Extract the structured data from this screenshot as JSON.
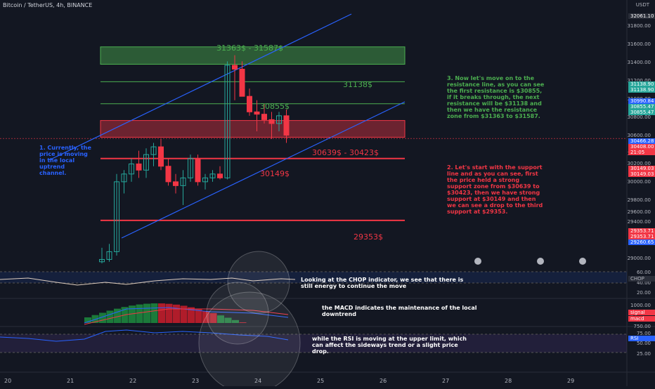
{
  "header": {
    "symbol": "Bitcoin / TetherUS, 4h, BINANCE",
    "currency": "USDT"
  },
  "price_axis": {
    "ticks": [
      "31800.00",
      "31600.00",
      "31400.00",
      "31200.00",
      "31000.00",
      "30800.00",
      "30600.00",
      "30400.00",
      "30200.00",
      "30000.00",
      "29800.00",
      "29600.00",
      "29400.00",
      "29000.00"
    ],
    "tags": [
      {
        "text": "32061.10",
        "color": "#2a2e39"
      },
      {
        "text": "31138.90",
        "color": "#26a69a"
      },
      {
        "text": "31138.90",
        "color": "#26a69a"
      },
      {
        "text": "30990.84",
        "color": "#2962ff"
      },
      {
        "text": "30855.47",
        "color": "#26a69a"
      },
      {
        "text": "30855.47",
        "color": "#26a69a"
      },
      {
        "text": "30466.28",
        "color": "#2962ff"
      },
      {
        "text": "30408.00",
        "color": "#f23645"
      },
      {
        "text": "21:05",
        "color": "#f23645"
      },
      {
        "text": "30149.03",
        "color": "#f23645"
      },
      {
        "text": "30149.03",
        "color": "#f23645"
      },
      {
        "text": "29353.71",
        "color": "#f23645"
      },
      {
        "text": "29353.71",
        "color": "#f23645"
      },
      {
        "text": "29260.65",
        "color": "#2962ff"
      }
    ]
  },
  "time_axis": {
    "ticks": [
      "20",
      "21",
      "22",
      "23",
      "24",
      "25",
      "26",
      "27",
      "28",
      "29"
    ]
  },
  "levels": {
    "zone_top": "31363$ - 31587$",
    "r1": "31138$",
    "r2": "30855$",
    "zone_support": "30639$ - 30423$",
    "s1": "30149$",
    "s2": "29353$"
  },
  "notes": {
    "n1": "1. Currently, the\nprice is moving\nin the local\nuptrend\nchannel.",
    "n2": "2. Let's start with the support\nline and as you can see, first\nthe price held a strong\nsupport zone from $30639 to\n$30423, then we have strong\nsupport at $30149 and then\nwe can see a drop to the third\nsupport at $29353.",
    "n3": "3. Now let's move on to the\nresistance line, as you can see\nthe first resistance is $30855,\nif it breaks through, the next\nresistance will be $31138 and\nthen we have the resistance\nzone from $31363 to $31587.",
    "chop": "Looking at the CHOP indicator, we see that there is\nstill energy to continue the move",
    "macd": "the MACD indicates the maintenance of the local\ndowntrend",
    "rsi": "while the RSI is moving at the upper limit, which\ncan affect the sideways trend or a slight price\ndrop."
  },
  "chop_axis": {
    "ticks": [
      "60.00",
      "40.00",
      "20.00"
    ],
    "tag": "CHOP"
  },
  "macd_axis": {
    "ticks": [
      "1000.00",
      "750.00"
    ],
    "tag1": "signal line",
    "tag2": "macd"
  },
  "rsi_axis": {
    "ticks": [
      "75.00",
      "50.00",
      "25.00"
    ],
    "tag": "RSI"
  },
  "colors": {
    "up": "#26a69a",
    "down": "#f23645",
    "channel": "#2962ff",
    "resist": "#4caf50",
    "support": "#f23645"
  },
  "chart_data": {
    "type": "candlestick",
    "candles": [
      {
        "o": 28820,
        "h": 29000,
        "l": 28800,
        "c": 28850
      },
      {
        "o": 28850,
        "h": 29050,
        "l": 28820,
        "c": 28950
      },
      {
        "o": 28950,
        "h": 29950,
        "l": 28900,
        "c": 29850
      },
      {
        "o": 29850,
        "h": 30000,
        "l": 29700,
        "c": 29950
      },
      {
        "o": 29950,
        "h": 30150,
        "l": 29850,
        "c": 30080
      },
      {
        "o": 30080,
        "h": 30250,
        "l": 29900,
        "c": 30000
      },
      {
        "o": 30000,
        "h": 30280,
        "l": 29900,
        "c": 30200
      },
      {
        "o": 30200,
        "h": 30350,
        "l": 30050,
        "c": 30300
      },
      {
        "o": 30300,
        "h": 30400,
        "l": 30000,
        "c": 30050
      },
      {
        "o": 30050,
        "h": 30150,
        "l": 29800,
        "c": 29850
      },
      {
        "o": 29850,
        "h": 29950,
        "l": 29700,
        "c": 29800
      },
      {
        "o": 29800,
        "h": 30000,
        "l": 29550,
        "c": 29900
      },
      {
        "o": 29900,
        "h": 30200,
        "l": 29850,
        "c": 30150
      },
      {
        "o": 30150,
        "h": 30200,
        "l": 29800,
        "c": 29850
      },
      {
        "o": 29850,
        "h": 29950,
        "l": 29750,
        "c": 29900
      },
      {
        "o": 29900,
        "h": 30000,
        "l": 29850,
        "c": 29950
      },
      {
        "o": 29950,
        "h": 30050,
        "l": 29880,
        "c": 29900
      },
      {
        "o": 29900,
        "h": 31400,
        "l": 29880,
        "c": 31350
      },
      {
        "o": 31350,
        "h": 31480,
        "l": 30900,
        "c": 31300
      },
      {
        "o": 31300,
        "h": 31400,
        "l": 30950,
        "c": 30950
      },
      {
        "o": 30950,
        "h": 31050,
        "l": 30700,
        "c": 30750
      },
      {
        "o": 30750,
        "h": 30900,
        "l": 30500,
        "c": 30720
      },
      {
        "o": 30720,
        "h": 30850,
        "l": 30600,
        "c": 30650
      },
      {
        "o": 30650,
        "h": 30750,
        "l": 30400,
        "c": 30600
      },
      {
        "o": 30600,
        "h": 30750,
        "l": 30500,
        "c": 30700
      },
      {
        "o": 30700,
        "h": 30780,
        "l": 30350,
        "c": 30450
      }
    ],
    "ylim": [
      28800,
      32100
    ]
  }
}
